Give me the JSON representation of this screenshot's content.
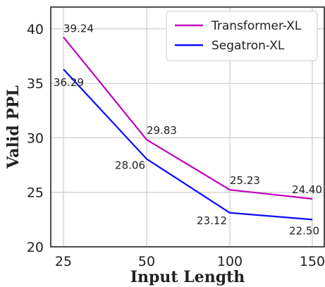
{
  "chart_data": {
    "type": "line",
    "title": "",
    "xlabel": "Input Length",
    "ylabel": "Valid PPL",
    "categories": [
      "25",
      "50",
      "100",
      "150"
    ],
    "ylim": [
      20,
      42
    ],
    "yticks": [
      20,
      25,
      30,
      35,
      40
    ],
    "grid": true,
    "legend_position": "top-right",
    "series": [
      {
        "name": "Transformer-XL",
        "color": "#c000c0",
        "values": [
          39.24,
          29.83,
          25.23,
          24.4
        ],
        "labels": [
          "39.24",
          "29.83",
          "25.23",
          "24.40"
        ]
      },
      {
        "name": "Segatron-XL",
        "color": "#0a0aff",
        "values": [
          36.29,
          28.06,
          23.12,
          22.5
        ],
        "labels": [
          "36.29",
          "28.06",
          "23.12",
          "22.50"
        ]
      }
    ]
  }
}
